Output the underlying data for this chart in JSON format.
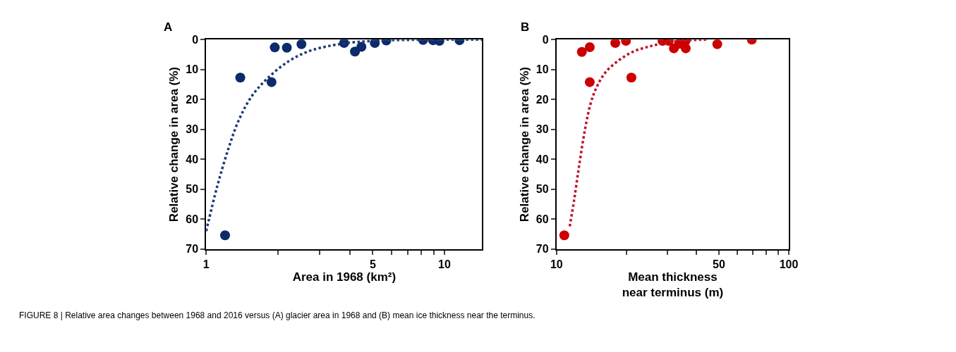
{
  "chart_data": [
    {
      "type": "scatter",
      "title": "A",
      "xlabel": "Area in 1968 (km²)",
      "ylabel": "Relative change in area (%)",
      "log": "x",
      "xlim": [
        1,
        14.4
      ],
      "xticks": [
        1,
        {
          "value": 2,
          "label": null
        },
        {
          "value": 3,
          "label": null
        },
        {
          "value": 4,
          "label": null
        },
        5,
        {
          "value": 6,
          "label": null
        },
        {
          "value": 7,
          "label": null
        },
        {
          "value": 8,
          "label": null
        },
        {
          "value": 9,
          "label": null
        },
        10
      ],
      "ylim": [
        70,
        0
      ],
      "yticks": [
        0,
        10,
        20,
        30,
        40,
        50,
        60,
        70
      ],
      "annotations": [
        "FIGURE 8 | Relative area changes between 1968 and 2016 versus (A) glacier area in 1968 and (B) mean ice thickness near the terminus."
      ],
      "series": [
        {
          "marker": "circle",
          "color": "#0d2a6b",
          "x": [
            1.2,
            1.39,
            1.88,
            1.94,
            2.18,
            2.51,
            3.79,
            4.21,
            4.48,
            5.1,
            5.7,
            8.13,
            8.95,
            9.52,
            11.56
          ],
          "values": [
            65.4,
            12.7,
            14.2,
            2.6,
            2.7,
            1.5,
            1.1,
            4.0,
            2.4,
            1.1,
            0.3,
            0.1,
            0.2,
            0.4,
            0.2
          ]
        },
        {
          "type": "line",
          "marker": "none",
          "line_style": "dotted",
          "color": "#1a3a7a",
          "x": [
            1,
            1.11,
            1.24,
            1.37,
            1.55,
            1.81,
            2.22,
            2.71,
            3.39,
            4.24,
            5.92,
            11.6,
            14.4
          ],
          "values": [
            64,
            49.3,
            36.4,
            26.9,
            19,
            12.9,
            7.2,
            3.8,
            1.9,
            0.8,
            0.2,
            0,
            0
          ]
        }
      ]
    },
    {
      "type": "scatter",
      "title": "B",
      "xlabel": "Mean thickness\nnear terminus (m)",
      "ylabel": "Relative change in area (%)",
      "log": "x",
      "xlim": [
        10,
        100
      ],
      "xticks": [
        10,
        {
          "value": 20,
          "label": null
        },
        {
          "value": 30,
          "label": null
        },
        {
          "value": 40,
          "label": null
        },
        50,
        {
          "value": 60,
          "label": null
        },
        {
          "value": 70,
          "label": null
        },
        {
          "value": 80,
          "label": null
        },
        {
          "value": 90,
          "label": null
        },
        100
      ],
      "ylim": [
        70,
        0
      ],
      "yticks": [
        0,
        10,
        20,
        30,
        40,
        50,
        60,
        70
      ],
      "series": [
        {
          "marker": "circle",
          "color": "#cc0000",
          "x": [
            10.8,
            12.85,
            13.9,
            13.9,
            17.9,
            19.9,
            21.0,
            28.6,
            30.4,
            32.0,
            33.7,
            35.9,
            36.0,
            49.2,
            69.3
          ],
          "values": [
            65.4,
            4.1,
            2.5,
            14.2,
            1.1,
            0.4,
            12.7,
            0.4,
            0.4,
            2.9,
            1.4,
            0.4,
            2.9,
            1.5,
            0
          ]
        },
        {
          "type": "line",
          "marker": "none",
          "line_style": "dotted",
          "color": "#c0102a",
          "x": [
            11.4,
            11.9,
            12.5,
            13.2,
            14.0,
            14.9,
            16.3,
            18.7,
            21.4,
            24.5,
            28.1,
            33.7,
            45.2
          ],
          "values": [
            62.4,
            53.7,
            42.3,
            30.9,
            21.5,
            15.8,
            10.8,
            6.7,
            4.0,
            2.5,
            1.4,
            0.4,
            0
          ]
        }
      ]
    }
  ]
}
